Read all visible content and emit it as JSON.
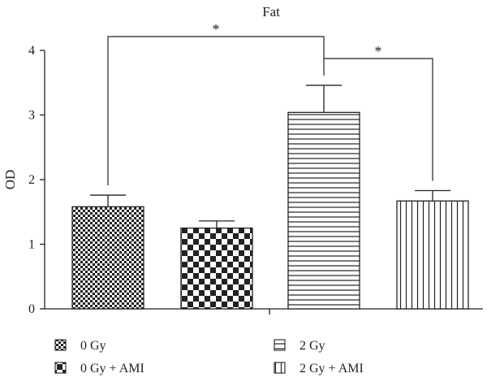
{
  "chart_data": {
    "type": "bar",
    "title": "Fat",
    "xlabel": "",
    "ylabel": "OD",
    "ylim": [
      0,
      4
    ],
    "yticks": [
      "0",
      "1",
      "2",
      "3",
      "4"
    ],
    "grid": false,
    "legend_position": "bottom",
    "categories": [
      "0 Gy",
      "0 Gy + AMI",
      "2 Gy",
      "2 Gy + AMI"
    ],
    "values": [
      1.58,
      1.25,
      3.04,
      1.67
    ],
    "errors": [
      0.18,
      0.11,
      0.42,
      0.16
    ],
    "patterns": [
      "fine-check",
      "coarse-check",
      "horizontal-lines",
      "vertical-lines"
    ],
    "significance": [
      {
        "from": "0 Gy",
        "to": "2 Gy",
        "label": "*"
      },
      {
        "from": "2 Gy",
        "to": "2 Gy + AMI",
        "label": "*"
      }
    ],
    "colors": {
      "ink": "#222222",
      "background": "#ffffff"
    }
  }
}
